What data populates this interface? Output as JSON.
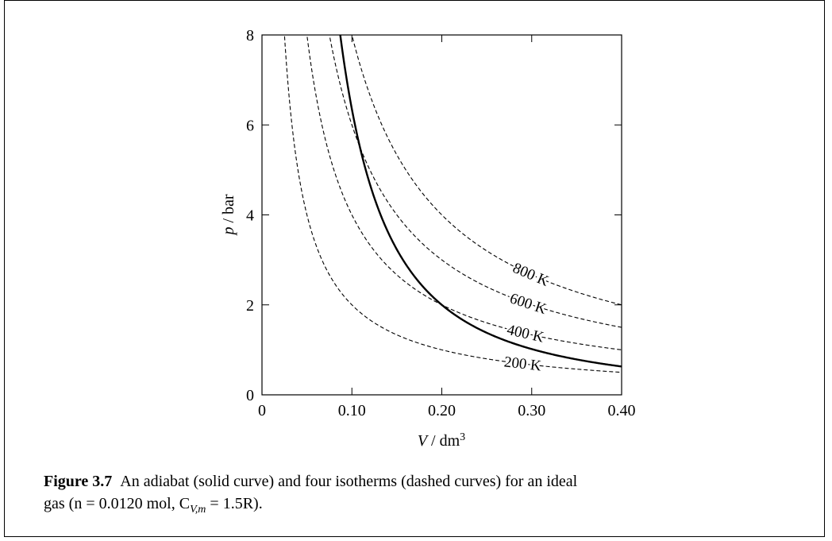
{
  "chart_data": {
    "type": "line",
    "xlabel": "V / dm3",
    "ylabel": "p / bar",
    "xlim": [
      0,
      0.4
    ],
    "ylim": [
      0,
      8
    ],
    "x_ticks": [
      "0",
      "0.10",
      "0.20",
      "0.30",
      "0.40"
    ],
    "x_tick_values": [
      0,
      0.1,
      0.2,
      0.3,
      0.4
    ],
    "y_ticks": [
      "0",
      "2",
      "4",
      "6",
      "8"
    ],
    "y_tick_values": [
      0,
      2,
      4,
      6,
      8
    ],
    "grid": false,
    "series": [
      {
        "kind": "isotherm",
        "style": "dashed",
        "T": 200,
        "label": "200 K",
        "pV": 0.2
      },
      {
        "kind": "isotherm",
        "style": "dashed",
        "T": 400,
        "label": "400 K",
        "pV": 0.4
      },
      {
        "kind": "isotherm",
        "style": "dashed",
        "T": 600,
        "label": "600 K",
        "pV": 0.6
      },
      {
        "kind": "isotherm",
        "style": "dashed",
        "T": 800,
        "label": "800 K",
        "pV": 0.8
      },
      {
        "kind": "adiabat",
        "style": "solid",
        "through": [
          0.2,
          2.0
        ],
        "exponent": 1.6667
      }
    ]
  },
  "figure": {
    "number": "Figure 3.7",
    "caption_line1": "An adiabat (solid curve) and four isotherms (dashed curves) for an ideal",
    "caption_line2": "gas (n = 0.0120 mol, C",
    "caption_sub": "V,m",
    "caption_line2_end": " = 1.5R)."
  }
}
